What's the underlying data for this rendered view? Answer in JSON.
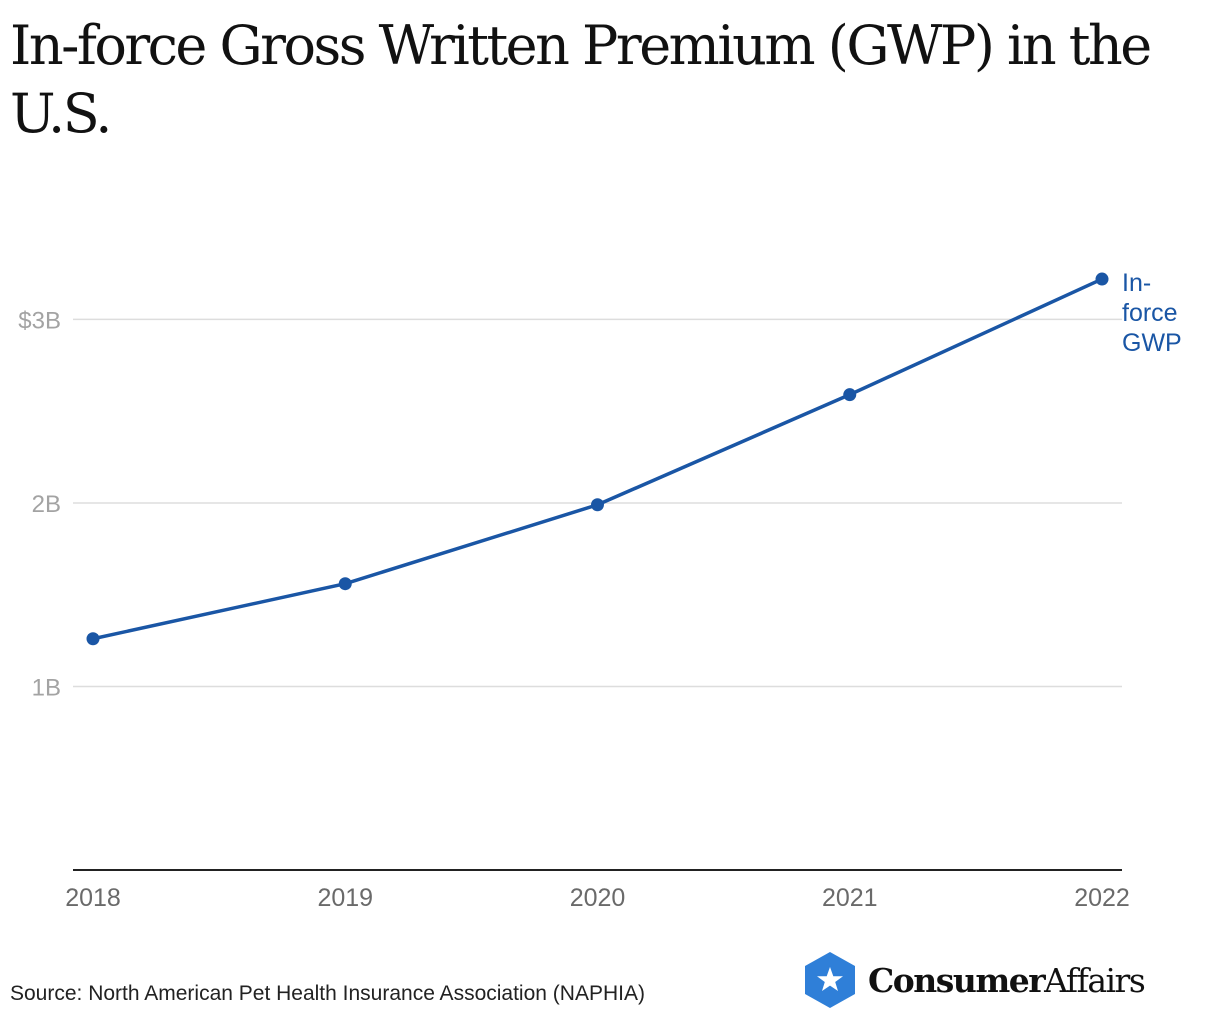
{
  "title": "In-force Gross Written Premium (GWP) in the U.S.",
  "source": "Source: North American Pet Health Insurance Association (NAPHIA)",
  "brand": {
    "name_bold": "Consumer",
    "name_regular": "Affairs",
    "icon": "star-shield-icon",
    "color": "#2f7fd8"
  },
  "colors": {
    "line": "#1a56a5",
    "grid": "#dddddd",
    "axis": "#222222"
  },
  "chart_data": {
    "type": "line",
    "title": "In-force Gross Written Premium (GWP) in the U.S.",
    "x": [
      "2018",
      "2019",
      "2020",
      "2021",
      "2022"
    ],
    "series": [
      {
        "name": "In-force GWP",
        "label_lines": [
          "In-",
          "force",
          "GWP"
        ],
        "values": [
          1.26,
          1.56,
          1.99,
          2.59,
          3.22
        ]
      }
    ],
    "ylim": [
      0,
      3.4
    ],
    "yticks": [
      {
        "value": 1,
        "label": "1B"
      },
      {
        "value": 2,
        "label": "2B"
      },
      {
        "value": 3,
        "label": "$3B"
      }
    ],
    "xlabel": "",
    "ylabel": "",
    "grid": true,
    "legend": "none"
  }
}
